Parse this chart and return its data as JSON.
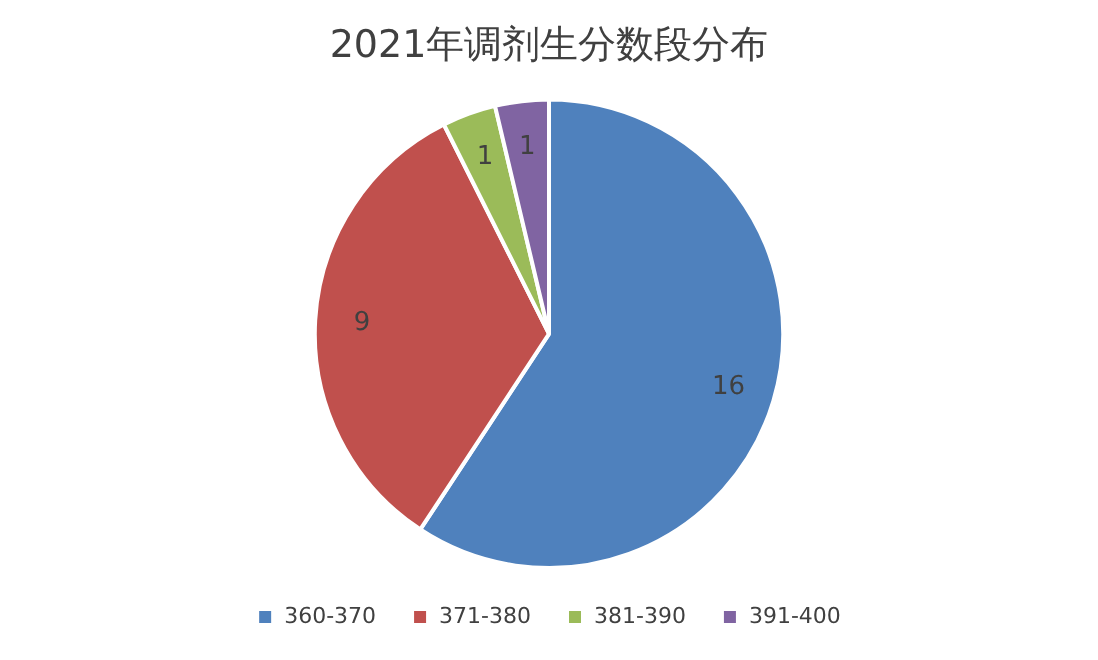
{
  "chart_data": {
    "type": "pie",
    "title": "2021年调剂生分数段分布",
    "categories": [
      "360-370",
      "371-380",
      "381-390",
      "391-400"
    ],
    "values": [
      16,
      9,
      1,
      1
    ],
    "colors": [
      "#4f81bd",
      "#c0504d",
      "#9bbb59",
      "#8064a2"
    ],
    "data_labels": true,
    "legend": "bottom"
  }
}
